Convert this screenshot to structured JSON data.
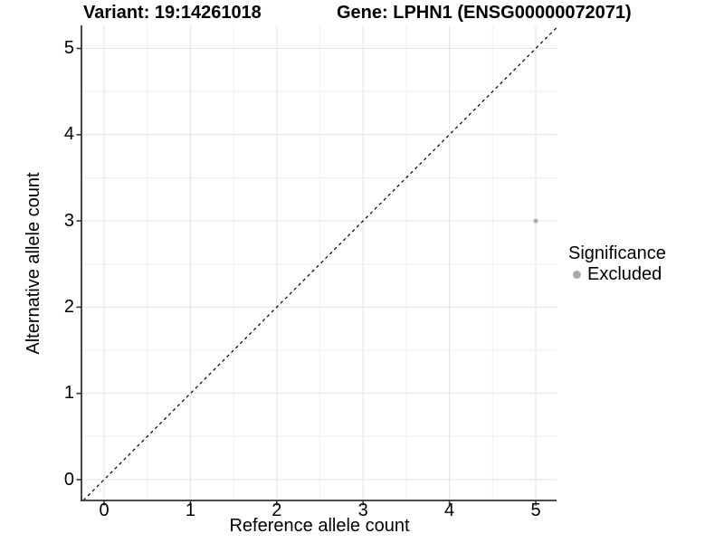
{
  "chart_data": {
    "type": "scatter",
    "title_left": "Variant: 19:14261018",
    "title_right": "Gene: LPHN1 (ENSG00000072071)",
    "xlabel": "Reference allele count",
    "ylabel": "Alternative allele count",
    "xticks": [
      0,
      1,
      2,
      3,
      4,
      5
    ],
    "yticks": [
      0,
      1,
      2,
      3,
      4,
      5
    ],
    "minor_ticks": [
      0.5,
      1.5,
      2.5,
      3.5,
      4.5
    ],
    "xlim": [
      -0.26,
      5.24
    ],
    "ylim": [
      -0.24,
      5.27
    ],
    "grid": "major and minor, light gray on white",
    "reference_line": {
      "type": "identity y=x",
      "style": "dashed"
    },
    "points": [
      {
        "x": 5,
        "y": 3,
        "series": "Excluded"
      }
    ],
    "legend": {
      "title": "Significance",
      "position": "right",
      "items": [
        {
          "label": "Excluded",
          "color": "#a9a9a9"
        }
      ]
    },
    "colors": {
      "point": "#b0b0b0",
      "legend_dot": "#a9a9a9",
      "grid_major": "#e3e3e3",
      "grid_minor": "#efefef",
      "axis": "#333333",
      "reference_line": "#000000",
      "background": "#ffffff"
    }
  }
}
